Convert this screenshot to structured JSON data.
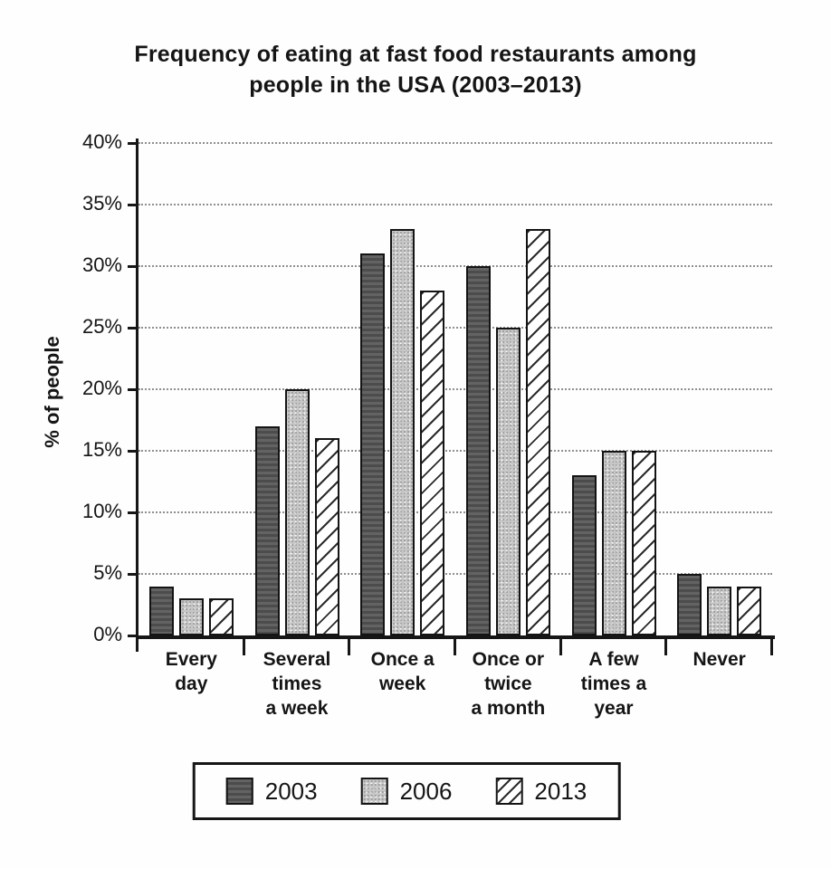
{
  "title": {
    "line1": "Frequency of eating at fast food restaurants among",
    "line2": "people in the USA (2003–2013)"
  },
  "y_axis_label": "% of people",
  "legend": {
    "items": [
      "2003",
      "2006",
      "2013"
    ]
  },
  "colors": {
    "series_2003": "#575757",
    "series_2006": "#c6c6c6",
    "series_2013_background": "#ffffff",
    "hatch_line": "#2b2b2b",
    "bar_border": "#141414",
    "axis": "#161616",
    "gridline": "#8f8f8f",
    "text": "#151515",
    "background": "#fefefe"
  },
  "chart_data": {
    "type": "bar",
    "title": "Frequency of eating at fast food restaurants among people in the USA (2003–2013)",
    "xlabel": "",
    "ylabel": "% of people",
    "ylim": [
      0,
      40
    ],
    "ytick_interval": 5,
    "ytick_labels": [
      "0%",
      "5%",
      "10%",
      "15%",
      "20%",
      "25%",
      "30%",
      "35%",
      "40%"
    ],
    "grid": true,
    "gridline_style": "dotted",
    "legend_position": "bottom-center",
    "categories": [
      "Every day",
      "Several times a week",
      "Once a week",
      "Once or twice a month",
      "A few times a year",
      "Never"
    ],
    "categories_wrapped": [
      [
        "Every",
        "day"
      ],
      [
        "Several",
        "times",
        "a week"
      ],
      [
        "Once a",
        "week"
      ],
      [
        "Once or",
        "twice",
        "a month"
      ],
      [
        "A few",
        "times a",
        "year"
      ],
      [
        "Never"
      ]
    ],
    "series": [
      {
        "name": "2003",
        "pattern": "solid-dark-gray",
        "values": [
          4,
          17,
          31,
          30,
          13,
          5
        ]
      },
      {
        "name": "2006",
        "pattern": "speckled-light-gray",
        "values": [
          3,
          20,
          33,
          25,
          15,
          4
        ]
      },
      {
        "name": "2013",
        "pattern": "white-diagonal-hatch",
        "values": [
          3,
          16,
          28,
          33,
          15,
          4
        ]
      }
    ],
    "unit": "percent of people"
  }
}
